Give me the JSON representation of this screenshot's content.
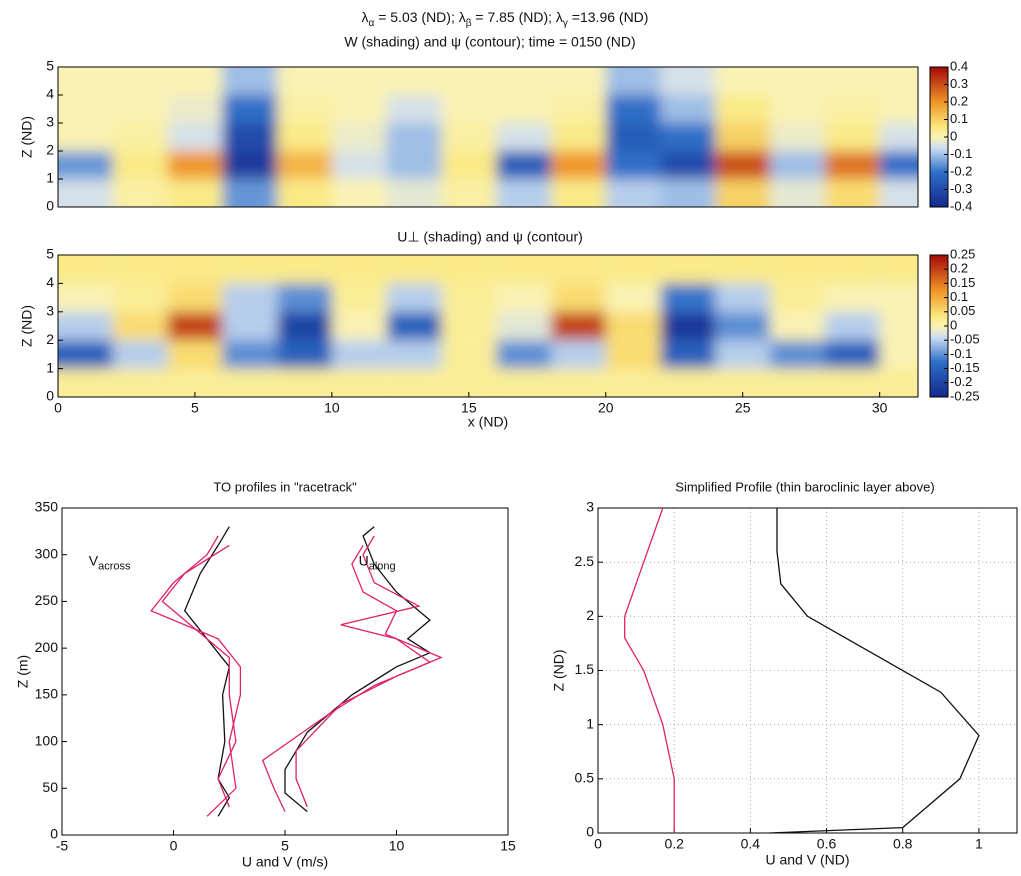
{
  "chart_data": [
    {
      "type": "heatmap",
      "title_parts": [
        {
          "symbol": "λ",
          "sub": "α",
          "text": " = 5.03 (ND); "
        },
        {
          "symbol": "λ",
          "sub": "β",
          "text": " = 7.85 (ND);  "
        },
        {
          "symbol": "λ",
          "sub": "γ",
          "text": " =13.96 (ND)"
        }
      ],
      "subtitle": "W (shading) and ψ (contour); time = 0150 (ND)",
      "ylabel": "Z (ND)",
      "xlim": [
        0,
        31.4
      ],
      "ylim": [
        0,
        5
      ],
      "yticks": [
        0,
        1,
        2,
        3,
        4,
        5
      ],
      "x": [
        1,
        3,
        5,
        7,
        9,
        11,
        13,
        15,
        17,
        19,
        21,
        23,
        25,
        27,
        29,
        31
      ],
      "y": [
        0.5,
        1.5,
        2.5,
        3.5,
        4.5
      ],
      "values": [
        [
          -0.05,
          0.02,
          0.05,
          -0.15,
          0.05,
          0,
          -0.03,
          0.02,
          -0.08,
          0.05,
          -0.08,
          -0.1,
          0.1,
          -0.03,
          0.08,
          -0.05
        ],
        [
          -0.15,
          0.05,
          0.2,
          -0.35,
          0.15,
          -0.05,
          -0.1,
          0.05,
          -0.25,
          0.2,
          -0.2,
          -0.3,
          0.3,
          -0.1,
          0.25,
          -0.2
        ],
        [
          0,
          0.02,
          -0.05,
          -0.3,
          0.05,
          -0.02,
          -0.1,
          0.02,
          -0.05,
          0.05,
          -0.25,
          -0.2,
          0.1,
          -0.02,
          0.05,
          -0.05
        ],
        [
          0,
          0,
          -0.02,
          -0.2,
          0.02,
          0,
          -0.05,
          0,
          0,
          0.02,
          -0.2,
          -0.1,
          0.05,
          0,
          0.02,
          0
        ],
        [
          0,
          0,
          0,
          -0.1,
          0,
          0,
          0,
          0,
          0,
          0,
          -0.1,
          -0.05,
          0,
          0,
          0,
          0
        ]
      ],
      "colorbar_lim": [
        -0.4,
        0.4
      ],
      "colorbar_ticks": [
        0.4,
        0.3,
        0.2,
        0.1,
        0,
        -0.1,
        -0.2,
        -0.3,
        -0.4
      ]
    },
    {
      "type": "heatmap",
      "title": "U⊥ (shading) and ψ (contour)",
      "ylabel": "Z (ND)",
      "xlabel": "x (ND)",
      "xlim": [
        0,
        31.4
      ],
      "xticks": [
        0,
        5,
        10,
        15,
        20,
        25,
        30
      ],
      "ylim": [
        0,
        5
      ],
      "yticks": [
        0,
        1,
        2,
        3,
        4,
        5
      ],
      "x": [
        1,
        3,
        5,
        7,
        9,
        11,
        13,
        15,
        17,
        19,
        21,
        23,
        25,
        27,
        29,
        31
      ],
      "y": [
        0.5,
        1.5,
        2.5,
        3.5,
        4.5
      ],
      "values": [
        [
          0.02,
          0.02,
          0.02,
          0.02,
          0.02,
          0.02,
          0.02,
          0.02,
          0.02,
          0.02,
          0.02,
          0.02,
          0.02,
          0.02,
          0.02,
          0.02
        ],
        [
          -0.15,
          -0.05,
          0.05,
          -0.1,
          -0.15,
          -0.05,
          -0.05,
          0.02,
          -0.1,
          -0.05,
          0.05,
          -0.15,
          -0.05,
          -0.1,
          -0.15,
          0
        ],
        [
          -0.05,
          0.05,
          0.2,
          -0.05,
          -0.2,
          0,
          -0.15,
          0.02,
          -0.02,
          0.2,
          0.05,
          -0.22,
          -0.1,
          0,
          -0.05,
          0
        ],
        [
          0,
          0.02,
          0.05,
          -0.05,
          -0.1,
          0.02,
          -0.05,
          0.02,
          0,
          0.05,
          0,
          -0.12,
          -0.05,
          0.02,
          0,
          0
        ],
        [
          0.03,
          0.03,
          0.03,
          0.03,
          0.03,
          0.03,
          0.03,
          0.03,
          0.03,
          0.03,
          0.03,
          0.03,
          0.03,
          0.03,
          0.03,
          0.03
        ]
      ],
      "colorbar_lim": [
        -0.25,
        0.25
      ],
      "colorbar_ticks": [
        0.25,
        0.2,
        0.15,
        0.1,
        0.05,
        0,
        -0.05,
        -0.1,
        -0.15,
        -0.2,
        -0.25
      ]
    },
    {
      "type": "line",
      "title": "TO profiles in \"racetrack\"",
      "xlabel": "U and V (m/s)",
      "ylabel": "Z (m)",
      "xlim": [
        -5,
        15
      ],
      "xticks": [
        -5,
        0,
        5,
        10,
        15
      ],
      "ylim": [
        0,
        350
      ],
      "yticks": [
        0,
        50,
        100,
        150,
        200,
        250,
        300,
        350
      ],
      "grid": false,
      "annotations": [
        {
          "text": "V",
          "sub": "across"
        },
        {
          "text": "U",
          "sub": "along"
        }
      ],
      "series": [
        {
          "color": "#111111",
          "x": [
            2,
            2.5,
            2,
            2.3,
            2.2,
            2.5,
            1.5,
            0.5,
            1.2,
            2,
            2.5
          ],
          "y": [
            20,
            40,
            60,
            100,
            150,
            180,
            210,
            240,
            280,
            310,
            330
          ]
        },
        {
          "color": "#e0206a",
          "x": [
            1.5,
            2.8,
            2.5,
            3,
            3,
            2,
            -1,
            0,
            1.5,
            2
          ],
          "y": [
            20,
            50,
            100,
            150,
            180,
            210,
            240,
            270,
            300,
            320
          ]
        },
        {
          "color": "#e0206a",
          "x": [
            2.5,
            2,
            2.8,
            2.5,
            2.5,
            1,
            -0.5,
            0.5,
            2.5
          ],
          "y": [
            30,
            60,
            100,
            150,
            190,
            220,
            250,
            280,
            310
          ]
        },
        {
          "color": "#111111",
          "x": [
            6,
            5,
            5,
            6,
            8,
            10,
            11.5,
            10.5,
            11.5,
            10,
            9,
            8.5,
            9
          ],
          "y": [
            25,
            45,
            70,
            110,
            150,
            180,
            195,
            210,
            230,
            260,
            290,
            320,
            330
          ]
        },
        {
          "color": "#e0206a",
          "x": [
            5,
            4.5,
            4,
            7,
            9,
            11.5,
            10,
            7.5,
            11,
            9,
            8.5,
            9
          ],
          "y": [
            25,
            50,
            80,
            130,
            160,
            185,
            210,
            225,
            245,
            270,
            300,
            320
          ]
        },
        {
          "color": "#e0206a",
          "x": [
            6,
            5.5,
            5.5,
            7.5,
            10,
            12,
            9.5,
            10,
            8.5,
            8,
            8.5
          ],
          "y": [
            30,
            60,
            90,
            140,
            170,
            190,
            215,
            240,
            260,
            290,
            310
          ]
        }
      ]
    },
    {
      "type": "line",
      "title": "Simplified Profile (thin baroclinic layer above)",
      "xlabel": "U and V (ND)",
      "ylabel": "Z (ND)",
      "xlim": [
        0,
        1.1
      ],
      "xticks": [
        0,
        0.2,
        0.4,
        0.6,
        0.8,
        1
      ],
      "ylim": [
        0,
        3
      ],
      "yticks": [
        0,
        0.5,
        1,
        1.5,
        2,
        2.5,
        3
      ],
      "grid": true,
      "series": [
        {
          "color": "#e0206a",
          "x": [
            0.2,
            0.2,
            0.17,
            0.12,
            0.07,
            0.07,
            0.12,
            0.17
          ],
          "y": [
            0,
            0.5,
            1,
            1.5,
            1.8,
            2,
            2.5,
            3
          ]
        },
        {
          "color": "#111111",
          "x": [
            0.45,
            0.8,
            0.95,
            1,
            0.9,
            0.7,
            0.55,
            0.48,
            0.47,
            0.47
          ],
          "y": [
            0,
            0.05,
            0.5,
            0.9,
            1.3,
            1.7,
            2,
            2.3,
            2.6,
            3
          ]
        }
      ]
    }
  ]
}
